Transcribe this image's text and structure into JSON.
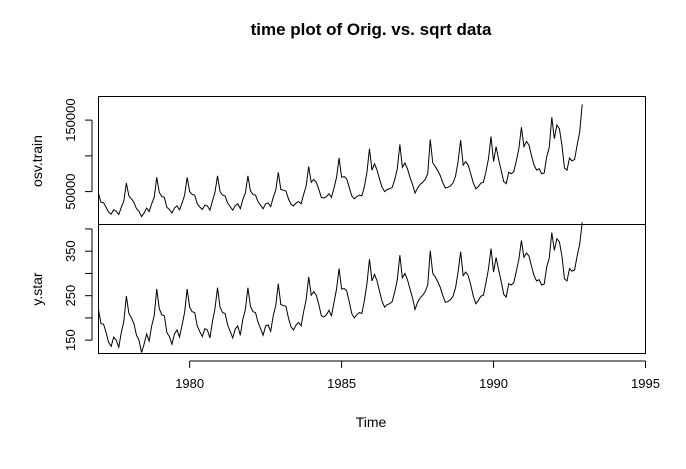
{
  "chart_data": {
    "type": "line",
    "title": "time plot of Orig. vs. sqrt data",
    "xlabel": "Time",
    "x_range": [
      1977,
      1995
    ],
    "x_ticks": [
      1980,
      1985,
      1990,
      1995
    ],
    "x_tick_labels": [
      "1980",
      "1985",
      "1990",
      "1995"
    ],
    "time_start": 1977,
    "frequency": 12,
    "panels": [
      {
        "ylabel": "osv.train",
        "ylim": [
          4000,
          183000
        ],
        "y_ticks": [
          50000,
          150000
        ],
        "y_tick_labels": [
          "50000",
          "150000"
        ],
        "y_minor_ticks": [
          100000
        ],
        "series": [
          {
            "values": [
              47500,
              35000,
              34500,
              28000,
              21000,
              18500,
              24500,
              22500,
              18000,
              28000,
              37000,
              62000,
              44000,
              40000,
              35000,
              26000,
              22500,
              15000,
              20000,
              27000,
              22000,
              33000,
              42000,
              70000,
              49000,
              43000,
              42000,
              28000,
              25000,
              20000,
              27000,
              30000,
              24500,
              34000,
              45000,
              70000,
              50000,
              46000,
              45000,
              33000,
              28500,
              25000,
              31000,
              30000,
              24000,
              37000,
              49000,
              72000,
              50000,
              45000,
              44000,
              34000,
              29000,
              24000,
              30500,
              33000,
              26000,
              39000,
              48000,
              72000,
              51000,
              46000,
              45000,
              36000,
              31000,
              26000,
              33000,
              34000,
              29000,
              42000,
              52000,
              77000,
              53000,
              52000,
              51000,
              40000,
              32500,
              30000,
              34000,
              36000,
              33000,
              46000,
              58000,
              85000,
              63000,
              67000,
              63000,
              53000,
              42000,
              41000,
              43000,
              47000,
              42000,
              55000,
              70000,
              97000,
              70000,
              71000,
              68000,
              56000,
              44000,
              40000,
              43000,
              45000,
              44000,
              57000,
              77000,
              110000,
              80000,
              89000,
              80000,
              67000,
              56000,
              50000,
              53000,
              54000,
              56000,
              67000,
              82000,
              116000,
              84000,
              90000,
              82000,
              70000,
              60000,
              48000,
              55000,
              60000,
              63000,
              67000,
              75000,
              123000,
              90000,
              85000,
              79000,
              72000,
              62000,
              55000,
              56000,
              58000,
              62000,
              72000,
              92000,
              122000,
              87000,
              92000,
              87000,
              75000,
              62000,
              54000,
              57000,
              62000,
              63000,
              78000,
              96000,
              127000,
              92000,
              113000,
              95000,
              80000,
              64000,
              61000,
              77000,
              75000,
              78000,
              93000,
              110000,
              140000,
              113000,
              120000,
              115000,
              100000,
              87000,
              80000,
              82000,
              75000,
              76000,
              99000,
              112000,
              154000,
              124000,
              143000,
              138000,
              115000,
              83000,
              80000,
              97000,
              93000,
              95000,
              115000,
              133000,
              172000
            ]
          }
        ]
      },
      {
        "ylabel": "y.star",
        "ylim": [
          120,
          410
        ],
        "y_ticks": [
          150,
          250,
          350
        ],
        "y_tick_labels": [
          "150",
          "250",
          "350"
        ],
        "y_minor_ticks": [
          200,
          300,
          400
        ],
        "series": [
          {
            "values": [
              218,
              187,
              186,
              167,
              145,
              136,
              157,
              150,
              134,
              167,
              192,
              249,
              210,
              200,
              187,
              161,
              150,
              122,
              141,
              164,
              148,
              182,
              205,
              265,
              221,
              207,
              205,
              167,
              158,
              141,
              164,
              173,
              157,
              184,
              212,
              265,
              224,
              214,
              212,
              182,
              169,
              158,
              176,
              173,
              155,
              192,
              221,
              268,
              224,
              212,
              210,
              184,
              170,
              155,
              175,
              182,
              161,
              197,
              219,
              268,
              226,
              214,
              212,
              190,
              176,
              161,
              182,
              184,
              170,
              205,
              228,
              277,
              230,
              228,
              226,
              200,
              180,
              173,
              184,
              190,
              182,
              214,
              241,
              292,
              251,
              259,
              251,
              230,
              205,
              202,
              207,
              217,
              205,
              235,
              265,
              311,
              265,
              266,
              261,
              237,
              210,
              200,
              207,
              212,
              210,
              239,
              277,
              332,
              283,
              298,
              283,
              259,
              237,
              224,
              230,
              232,
              237,
              259,
              286,
              341,
              290,
              300,
              286,
              265,
              245,
              219,
              235,
              245,
              251,
              259,
              274,
              351,
              300,
              292,
              281,
              268,
              249,
              235,
              237,
              241,
              249,
              268,
              303,
              349,
              295,
              303,
              295,
              274,
              249,
              232,
              239,
              249,
              251,
              279,
              310,
              356,
              303,
              336,
              308,
              283,
              253,
              247,
              277,
              274,
              279,
              305,
              332,
              374,
              336,
              346,
              339,
              316,
              295,
              283,
              286,
              274,
              276,
              315,
              335,
              392,
              352,
              378,
              371,
              339,
              288,
              283,
              311,
              305,
              308,
              339,
              365,
              415
            ]
          }
        ]
      }
    ]
  }
}
